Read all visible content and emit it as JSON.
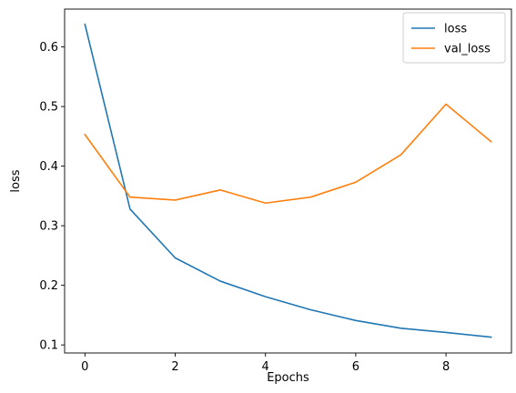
{
  "chart_data": {
    "type": "line",
    "title": "",
    "xlabel": "Epochs",
    "ylabel": "loss",
    "x": [
      0,
      1,
      2,
      3,
      4,
      5,
      6,
      7,
      8,
      9
    ],
    "xlim": [
      -0.45,
      9.45
    ],
    "ylim": [
      0.0865,
      0.6635
    ],
    "xticks": [
      0,
      2,
      4,
      6,
      8
    ],
    "yticks": [
      0.1,
      0.2,
      0.3,
      0.4,
      0.5,
      0.6
    ],
    "ytick_labels": [
      "0.1",
      "0.2",
      "0.3",
      "0.4",
      "0.5",
      "0.6"
    ],
    "grid": false,
    "legend_position": "top-right",
    "series": [
      {
        "name": "loss",
        "color": "#1f77b4",
        "values": [
          0.638,
          0.328,
          0.246,
          0.207,
          0.181,
          0.159,
          0.141,
          0.128,
          0.121,
          0.113
        ]
      },
      {
        "name": "val_loss",
        "color": "#ff7f0e",
        "values": [
          0.453,
          0.348,
          0.343,
          0.36,
          0.338,
          0.348,
          0.373,
          0.419,
          0.504,
          0.441
        ]
      }
    ]
  }
}
